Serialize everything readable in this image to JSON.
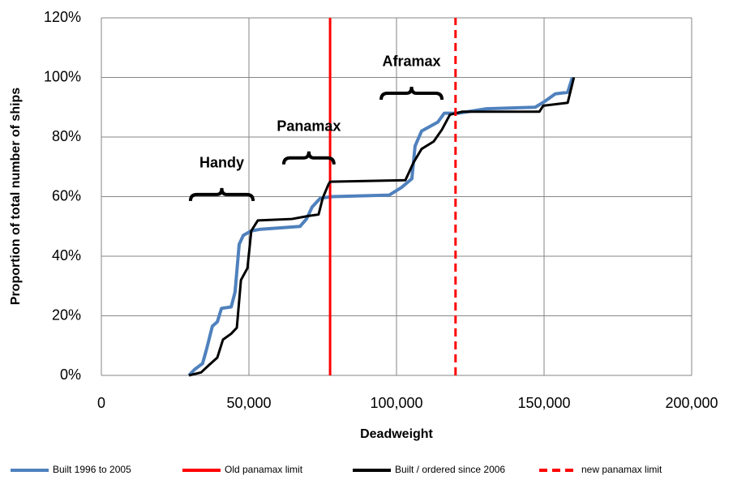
{
  "chart_data": {
    "type": "line",
    "xlabel": "Deadweight",
    "ylabel": "Proportion of total number of ships",
    "xlim": [
      0,
      200000
    ],
    "ylim": [
      0,
      120
    ],
    "xticks": [
      0,
      {
        "value": 50000,
        "label": "50,000"
      },
      {
        "value": 100000,
        "label": "100,000"
      },
      {
        "value": 150000,
        "label": "150,000"
      },
      {
        "value": 200000,
        "label": "200,000"
      }
    ],
    "yticks": [
      {
        "value": 0,
        "label": "0%"
      },
      {
        "value": 20,
        "label": "20%"
      },
      {
        "value": 40,
        "label": "40%"
      },
      {
        "value": 60,
        "label": "60%"
      },
      {
        "value": 80,
        "label": "80%"
      },
      {
        "value": 100,
        "label": "100%"
      },
      {
        "value": 120,
        "label": "120%"
      }
    ],
    "grid": true,
    "legend": "bottom",
    "series": [
      {
        "name": "Built 1996 to 2005",
        "color": "#4f81bd",
        "dashed": false,
        "x": [
          29670,
          31600,
          34300,
          35700,
          37600,
          39300,
          40700,
          44000,
          45300,
          46700,
          48100,
          50800,
          53600,
          67300,
          69500,
          71400,
          74200,
          78300,
          97500,
          101600,
          105200,
          106300,
          108500,
          114000,
          116200,
          120900,
          130500,
          147000,
          150300,
          153800,
          158000,
          159600
        ],
        "values": [
          0,
          2,
          4,
          9,
          16.5,
          18,
          22.5,
          23,
          28,
          44,
          47,
          48.5,
          49,
          50,
          52.5,
          56.5,
          59.5,
          60,
          60.5,
          63,
          66,
          77,
          82,
          85,
          88,
          88,
          89.5,
          90,
          92,
          94.5,
          95,
          100
        ]
      },
      {
        "name": "Old panamax  limit",
        "color": "#ff0000",
        "dashed": false,
        "x": [
          77500,
          77500
        ],
        "values": [
          0,
          120
        ]
      },
      {
        "name": "Built / ordered since 2006",
        "color": "#000000",
        "dashed": false,
        "x": [
          29700,
          33800,
          36500,
          39300,
          41200,
          44000,
          45900,
          47300,
          49500,
          50800,
          53000,
          64600,
          70100,
          73600,
          75000,
          76900,
          77500,
          103000,
          105800,
          108500,
          112600,
          115400,
          118100,
          122300,
          148400,
          149700,
          158000,
          160100
        ],
        "values": [
          0,
          1,
          3.5,
          6,
          12,
          14,
          16,
          32,
          36,
          48.5,
          52,
          52.5,
          53.5,
          54,
          59.5,
          64,
          65,
          65.5,
          71.5,
          76,
          78.5,
          82.5,
          87.5,
          88.5,
          88.5,
          90.5,
          91.5,
          100
        ]
      },
      {
        "name": "new panamax  limit",
        "color": "#ff0000",
        "dashed": true,
        "x": [
          120000,
          120000
        ],
        "values": [
          0,
          120
        ]
      }
    ],
    "annotations": [
      {
        "text": "Handy",
        "x": [
          30200,
          51400
        ],
        "y": 60.7
      },
      {
        "text": "Panamax",
        "x": [
          61800,
          78800
        ],
        "y": 73
      },
      {
        "text": "Aframax",
        "x": [
          94800,
          115400
        ],
        "y": 94.7
      }
    ]
  }
}
